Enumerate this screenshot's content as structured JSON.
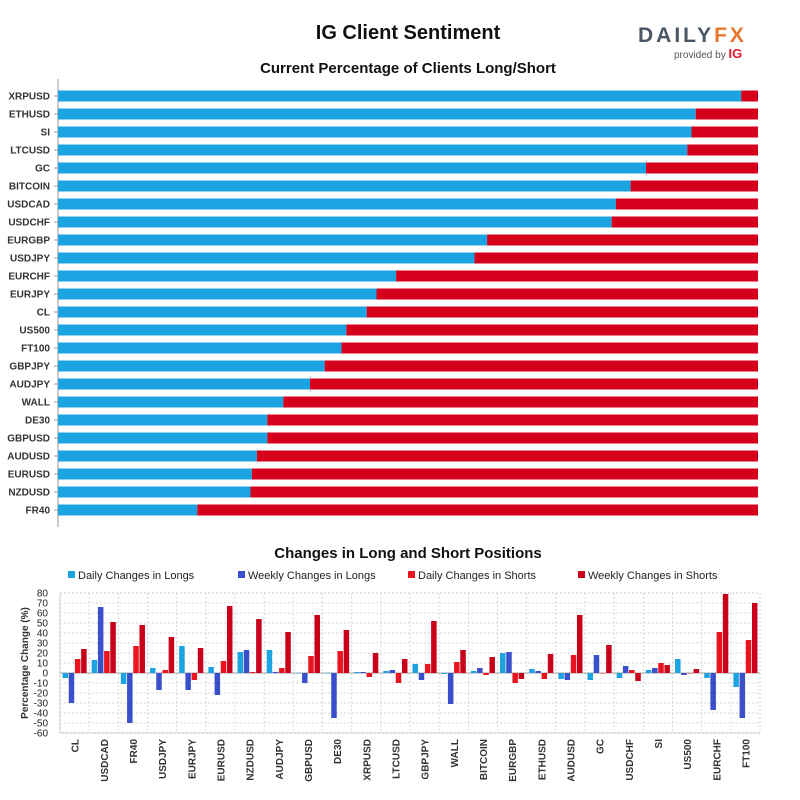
{
  "header": {
    "title": "IG Client Sentiment",
    "logo_word_a": "DAILY",
    "logo_word_b": "FX",
    "logo_sub": "provided by",
    "logo_ig": "IG"
  },
  "colors": {
    "long": "#1ca3e2",
    "short": "#d6001c",
    "weekly_long": "#3a4fcc",
    "daily_short": "#e8141f",
    "weekly_short": "#c8001a"
  },
  "chart_data": [
    {
      "type": "bar",
      "orientation": "horizontal-stacked",
      "title": "Current Percentage of Clients Long/Short",
      "categories": [
        "XRPUSD",
        "ETHUSD",
        "SI",
        "LTCUSD",
        "GC",
        "BITCOIN",
        "USDCAD",
        "USDCHF",
        "EURGBP",
        "USDJPY",
        "EURCHF",
        "EURJPY",
        "CL",
        "US500",
        "FT100",
        "GBPJPY",
        "AUDJPY",
        "WALL",
        "DE30",
        "GBPUSD",
        "AUDUSD",
        "EURUSD",
        "NZDUSD",
        "FR40"
      ],
      "series": [
        {
          "values": [
            97.6,
            91.1,
            90.5,
            89.9,
            84.0,
            81.8,
            79.7,
            79.1,
            61.3,
            59.5,
            48.3,
            45.5,
            44.1,
            41.2,
            40.5,
            38.1,
            36.0,
            32.2,
            29.9,
            29.9,
            28.4,
            27.7,
            27.5,
            19.9
          ]
        },
        {
          "values": [
            2.4,
            8.9,
            9.5,
            10.1,
            16.0,
            18.2,
            20.3,
            20.9,
            38.7,
            40.5,
            51.7,
            54.5,
            55.9,
            58.8,
            59.5,
            61.9,
            64.0,
            67.8,
            70.1,
            70.1,
            71.6,
            72.3,
            72.5,
            80.1
          ]
        }
      ],
      "xlim": [
        0,
        100
      ]
    },
    {
      "type": "bar",
      "title": "Changes in Long and Short Positions",
      "ylabel": "Percentage Change (%)",
      "ylim": [
        -60,
        80
      ],
      "yticks": [
        -60,
        -50,
        -40,
        -30,
        -20,
        -10,
        0,
        10,
        20,
        30,
        40,
        50,
        60,
        70,
        80
      ],
      "categories": [
        "CL",
        "USDCAD",
        "FR40",
        "USDJPY",
        "EURJPY",
        "EURUSD",
        "NZDUSD",
        "AUDJPY",
        "GBPUSD",
        "DE30",
        "XRPUSD",
        "LTCUSD",
        "GBPJPY",
        "WALL",
        "BITCOIN",
        "EURGBP",
        "ETHUSD",
        "AUDUSD",
        "GC",
        "USDCHF",
        "SI",
        "US500",
        "EURCHF",
        "FT100"
      ],
      "legend_position": "top",
      "series": [
        {
          "name": "Daily Changes in Longs",
          "values": [
            -5,
            13,
            -11,
            5,
            27,
            6,
            21,
            23,
            0,
            0,
            1,
            2,
            9,
            -1,
            2,
            20,
            4,
            -6,
            -7,
            -5,
            3,
            14,
            -5,
            -14
          ]
        },
        {
          "name": "Weekly Changes in Longs",
          "values": [
            -30,
            66,
            -50,
            -17,
            -17,
            -22,
            23,
            1,
            -10,
            -45,
            1,
            3,
            -7,
            -31,
            5,
            21,
            2,
            -7,
            18,
            7,
            5,
            -2,
            -37,
            -45
          ]
        },
        {
          "name": "Daily Changes in Shorts",
          "values": [
            14,
            22,
            27,
            3,
            -7,
            12,
            1,
            5,
            17,
            22,
            -4,
            -10,
            9,
            11,
            -2,
            -10,
            -6,
            18,
            0,
            3,
            10,
            0,
            41,
            33
          ]
        },
        {
          "name": "Weekly Changes in Shorts",
          "values": [
            24,
            51,
            48,
            36,
            25,
            67,
            54,
            41,
            58,
            43,
            20,
            14,
            52,
            23,
            16,
            -6,
            19,
            58,
            28,
            -8,
            8,
            4,
            79,
            70
          ]
        }
      ]
    }
  ]
}
